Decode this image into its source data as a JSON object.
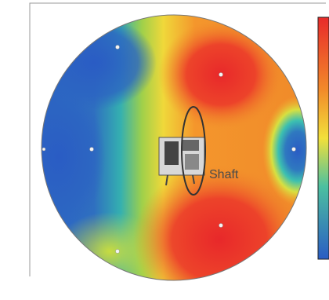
{
  "label": "Shaft"
}
